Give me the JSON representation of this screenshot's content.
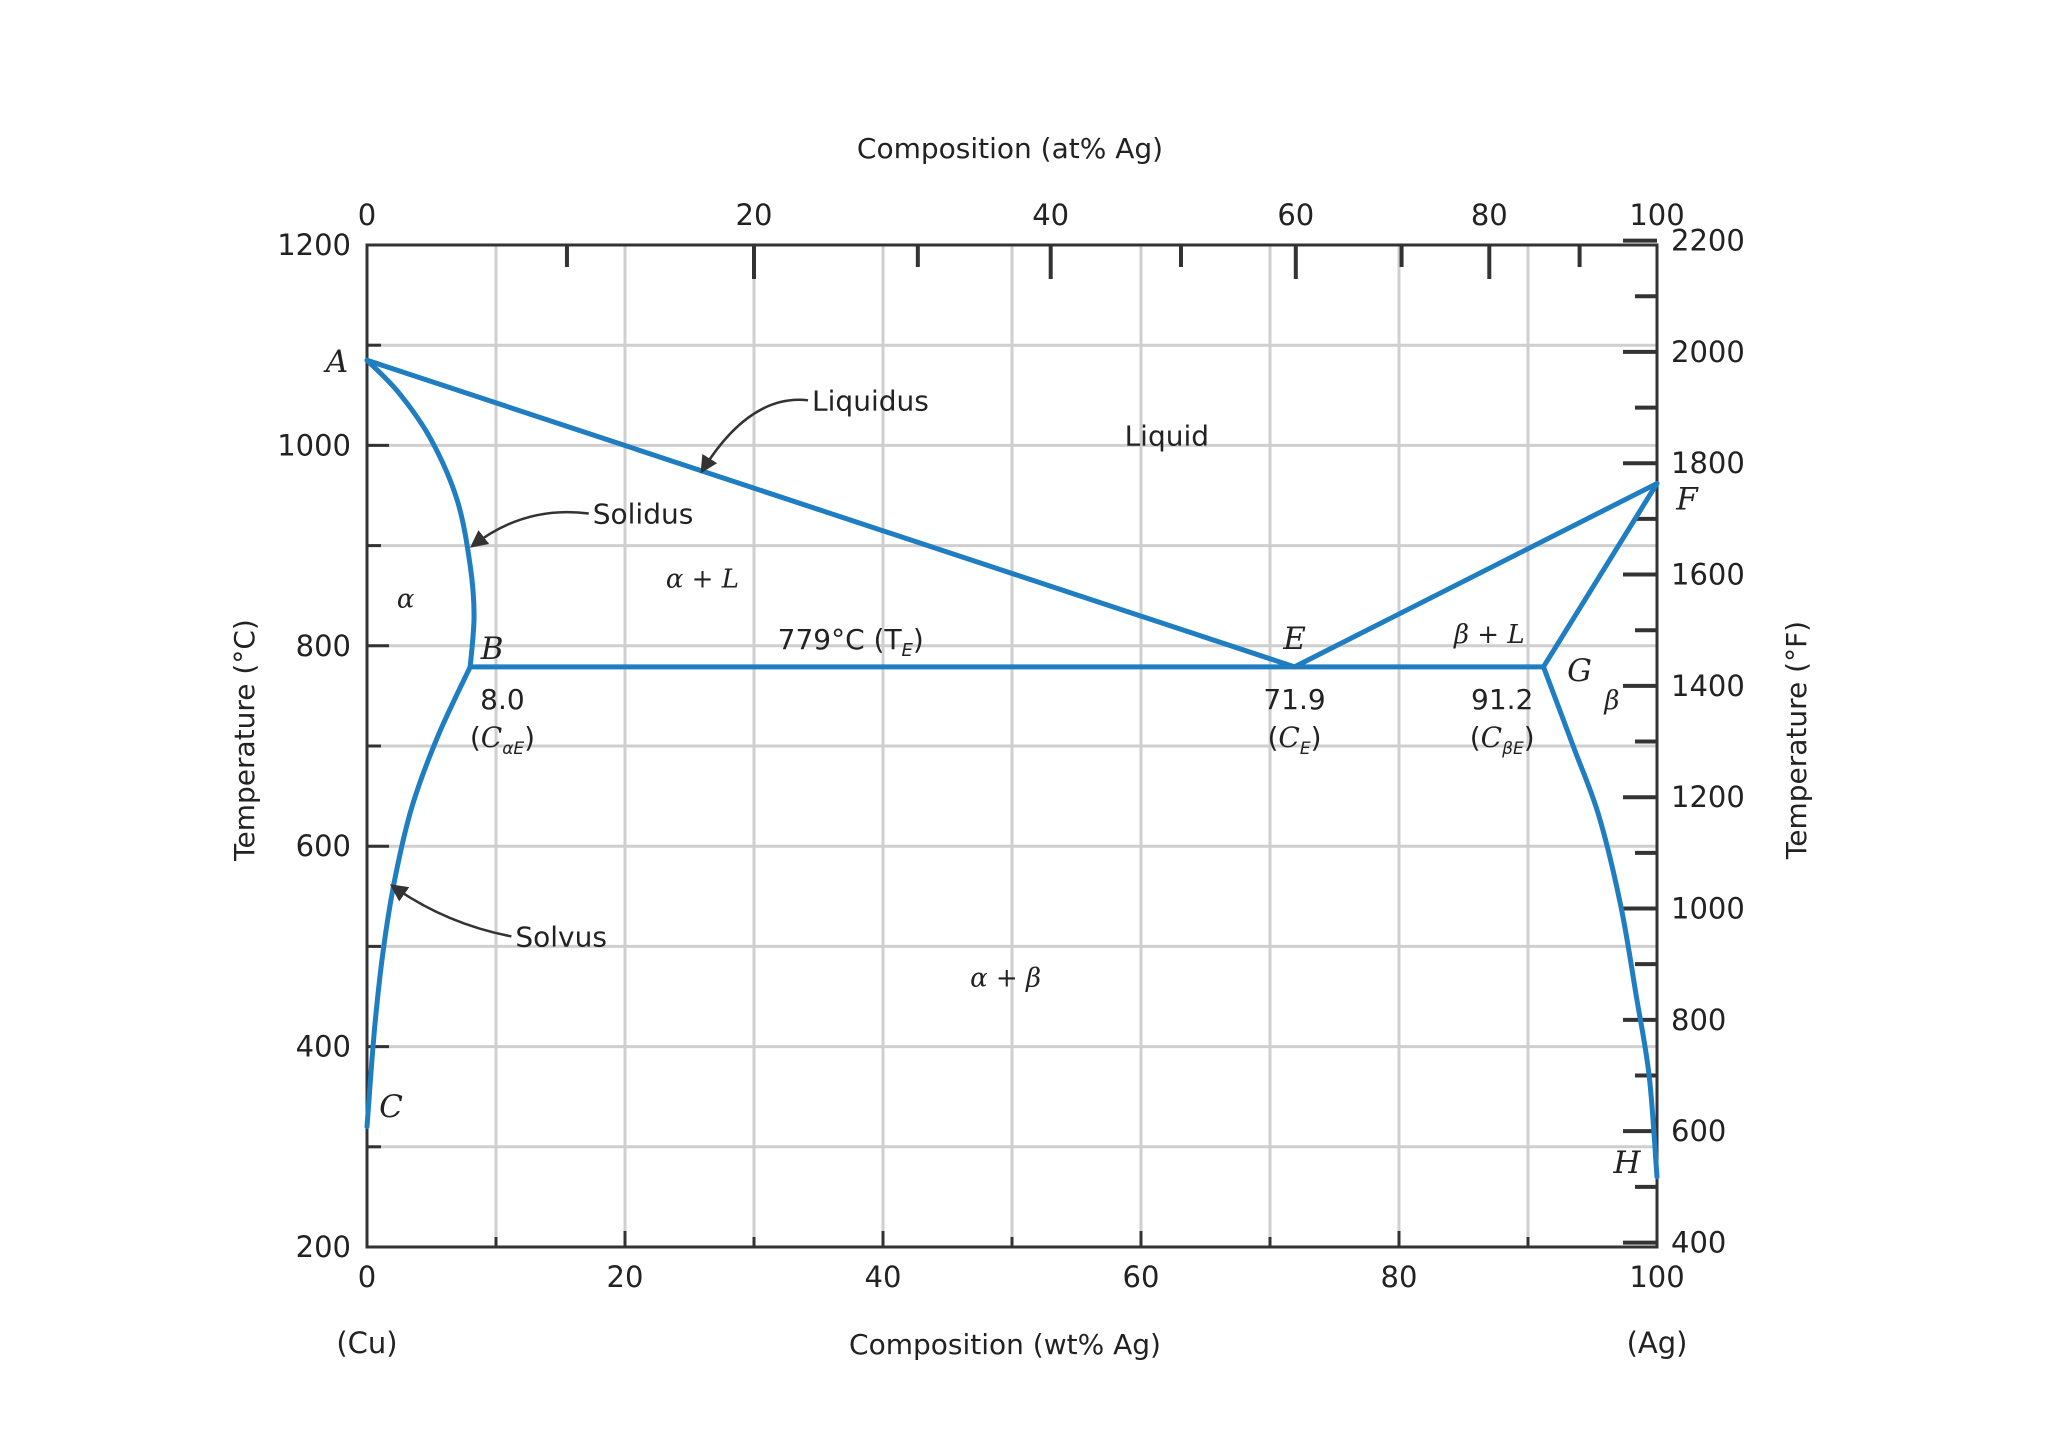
{
  "chart_data": {
    "type": "line",
    "title": "",
    "x_bottom_label": "Composition (wt% Ag)",
    "x_top_label": "Composition (at% Ag)",
    "y_left_label": "Temperature (°C)",
    "y_right_label": "Temperature (°F)",
    "xlim": [
      0,
      100
    ],
    "ylim": [
      200,
      1200
    ],
    "grid": true,
    "x_ticks": [
      "0",
      "20",
      "40",
      "60",
      "80",
      "100"
    ],
    "x_end_labels": {
      "left": "(Cu)",
      "right": "(Ag)"
    },
    "y_ticks": [
      "200",
      "400",
      "600",
      "800",
      "1000",
      "1200"
    ],
    "at_ticks": [
      {
        "label": "0",
        "wt": 0
      },
      {
        "label": "20",
        "wt": 30
      },
      {
        "label": "40",
        "wt": 53
      },
      {
        "label": "60",
        "wt": 72
      },
      {
        "label": "80",
        "wt": 87
      },
      {
        "label": "100",
        "wt": 100
      }
    ],
    "at_minor_wt": [
      15.5,
      42.7,
      63.1,
      80.2,
      94.0
    ],
    "f_ticks": [
      {
        "label": "2200",
        "c": 1204.4
      },
      {
        "label": "2000",
        "c": 1093.3
      },
      {
        "label": "1800",
        "c": 982.2
      },
      {
        "label": "1600",
        "c": 871.1
      },
      {
        "label": "1400",
        "c": 760.0
      },
      {
        "label": "1200",
        "c": 648.9
      },
      {
        "label": "1000",
        "c": 537.8
      },
      {
        "label": "800",
        "c": 426.7
      },
      {
        "label": "600",
        "c": 315.6
      },
      {
        "label": "400",
        "c": 204.4
      }
    ],
    "series": [
      {
        "points": [
          [
            0,
            1085
          ],
          [
            71.9,
            779
          ]
        ]
      },
      {
        "points": [
          [
            71.9,
            779
          ],
          [
            100,
            962
          ]
        ]
      },
      {
        "points": [
          [
            0,
            1085
          ],
          [
            2.5,
            1052
          ],
          [
            5,
            1005
          ],
          [
            7,
            945
          ],
          [
            8,
            880
          ],
          [
            8.3,
            830
          ],
          [
            8.0,
            779
          ]
        ]
      },
      {
        "points": [
          [
            100,
            962
          ],
          [
            91.2,
            779
          ]
        ]
      },
      {
        "points": [
          [
            8.0,
            779
          ],
          [
            5.5,
            710
          ],
          [
            3.5,
            640
          ],
          [
            2.2,
            570
          ],
          [
            1.3,
            500
          ],
          [
            0.6,
            420
          ],
          [
            0,
            320
          ]
        ]
      },
      {
        "points": [
          [
            91.2,
            779
          ],
          [
            93.5,
            700
          ],
          [
            95.5,
            630
          ],
          [
            97.2,
            540
          ],
          [
            98.4,
            450
          ],
          [
            99.4,
            370
          ],
          [
            100,
            270
          ]
        ]
      },
      {
        "points": [
          [
            8.0,
            779
          ],
          [
            91.2,
            779
          ]
        ]
      }
    ],
    "color": "#1f7dc1",
    "points": [
      {
        "label": "A",
        "x": 0,
        "y": 1085
      },
      {
        "label": "B",
        "x": 8.0,
        "y": 779
      },
      {
        "label": "C",
        "x": 0,
        "y": 320
      },
      {
        "label": "E",
        "x": 71.9,
        "y": 779
      },
      {
        "label": "F",
        "x": 100,
        "y": 962
      },
      {
        "label": "G",
        "x": 91.2,
        "y": 779
      },
      {
        "label": "H",
        "x": 100,
        "y": 270
      }
    ],
    "regions": [
      {
        "label": "Liquid",
        "x": 62,
        "y": 1000,
        "style": "plain"
      },
      {
        "label": "α",
        "x": 3,
        "y": 838,
        "style": "italic"
      },
      {
        "label": "α + L",
        "x": 26,
        "y": 858,
        "style": "italic"
      },
      {
        "label": "β + L",
        "x": 87,
        "y": 803,
        "style": "italic"
      },
      {
        "label": "β",
        "x": 96.5,
        "y": 737,
        "style": "italic"
      },
      {
        "label": "α + β",
        "x": 49.5,
        "y": 460,
        "style": "italic"
      }
    ],
    "eutectic_label": "779°C (T",
    "eutectic_sub": "E",
    "eutectic_close": ")",
    "compositions": [
      {
        "value": "8.0",
        "sym": "C",
        "sub": "αE",
        "x": 10.5
      },
      {
        "value": "71.9",
        "sym": "C",
        "sub": "E",
        "x": 71.9
      },
      {
        "value": "91.2",
        "sym": "C",
        "sub": "βE",
        "x": 88
      }
    ],
    "annotations": [
      {
        "text": "Liquidus",
        "tx": 34.5,
        "ty": 1045,
        "ax": 26,
        "ay": 975
      },
      {
        "text": "Solidus",
        "tx": 17.5,
        "ty": 932,
        "ax": 8.2,
        "ay": 900
      },
      {
        "text": "Solvus",
        "tx": 11.5,
        "ty": 510,
        "ax": 2.0,
        "ay": 560
      }
    ]
  }
}
